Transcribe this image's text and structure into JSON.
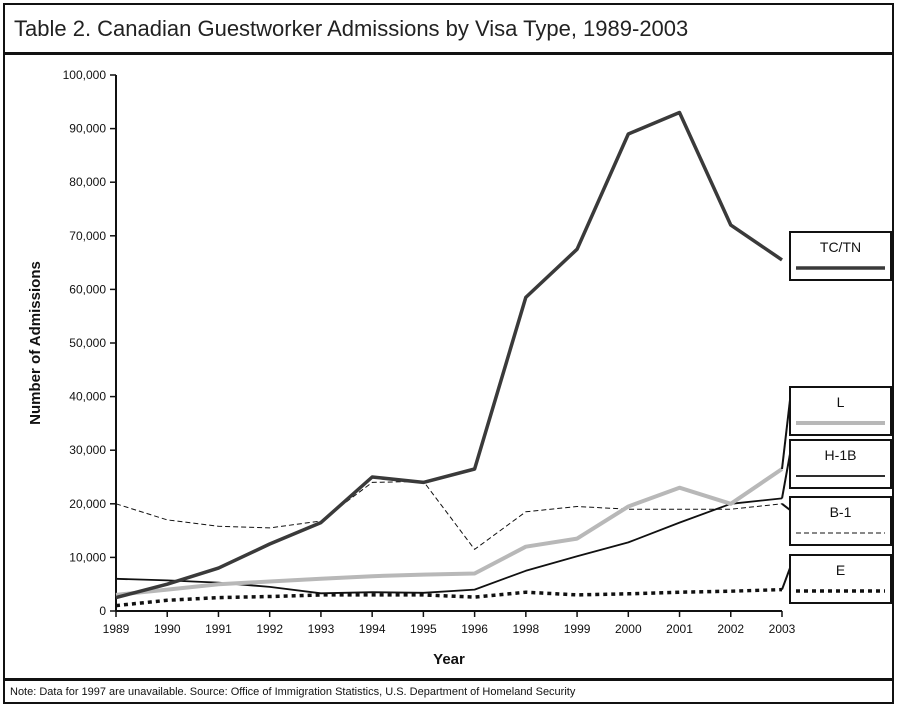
{
  "header": {
    "title": "Table 2. Canadian Guestworker Admissions by Visa Type, 1989-2003"
  },
  "footer": {
    "note": "Note: Data for 1997 are unavailable. Source: Office of Immigration Statistics, U.S. Department of Homeland Security"
  },
  "chart_data": {
    "type": "line",
    "title": "Table 2. Canadian Guestworker Admissions by Visa Type, 1989-2003",
    "xlabel": "Year",
    "ylabel": "Number of Admissions",
    "categories": [
      "1989",
      "1990",
      "1991",
      "1992",
      "1993",
      "1994",
      "1995",
      "1996",
      "1998",
      "1999",
      "2000",
      "2001",
      "2002",
      "2003"
    ],
    "ylim": [
      0,
      100000
    ],
    "yticks": [
      0,
      10000,
      20000,
      30000,
      40000,
      50000,
      60000,
      70000,
      80000,
      90000,
      100000
    ],
    "ytick_labels": [
      "0",
      "10,000",
      "20,000",
      "30,000",
      "40,000",
      "50,000",
      "60,000",
      "70,000",
      "80,000",
      "90,000",
      "100,000"
    ],
    "grid": false,
    "legend_position": "right, labels in boxes connected to line ends",
    "series": [
      {
        "name": "TC/TN",
        "color": "#3a3a3a",
        "style": "thick-solid",
        "values": [
          2500,
          5000,
          8000,
          12500,
          16500,
          25000,
          24000,
          26500,
          58500,
          67500,
          89000,
          93000,
          72000,
          65500
        ]
      },
      {
        "name": "L",
        "color": "#b8b8b8",
        "style": "thick-solid-gray",
        "values": [
          3000,
          4000,
          5000,
          5500,
          6000,
          6500,
          6800,
          7000,
          12000,
          13500,
          19500,
          23000,
          20000,
          26500
        ]
      },
      {
        "name": "H-1B",
        "color": "#111111",
        "style": "solid",
        "values": [
          6000,
          5700,
          5300,
          4500,
          3300,
          3500,
          3400,
          4000,
          7500,
          10200,
          12800,
          16500,
          20000,
          21000
        ]
      },
      {
        "name": "B-1",
        "color": "#111111",
        "style": "thin-dashed",
        "values": [
          20000,
          17000,
          15800,
          15500,
          16800,
          24000,
          24200,
          11500,
          18500,
          19500,
          19000,
          19000,
          19000,
          20000
        ]
      },
      {
        "name": "E",
        "color": "#111111",
        "style": "thick-dotted",
        "values": [
          1000,
          2000,
          2500,
          2700,
          3000,
          3000,
          3000,
          2600,
          3500,
          3000,
          3200,
          3500,
          3700,
          4000
        ]
      }
    ]
  }
}
